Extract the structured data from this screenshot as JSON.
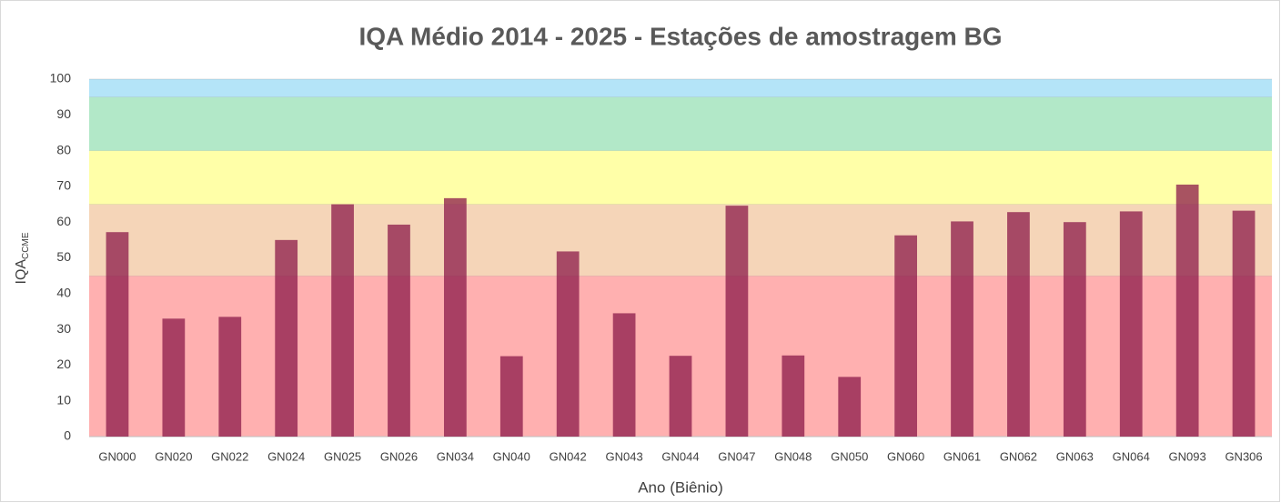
{
  "chart_data": {
    "type": "bar",
    "title": "IQA Médio 2014 - 2025 - Estações de amostragem BG",
    "x_label": "Ano (Biênio)",
    "y_label": "IQA",
    "y_label_sub": "CCME",
    "categories": [
      "GN000",
      "GN020",
      "GN022",
      "GN024",
      "GN025",
      "GN026",
      "GN034",
      "GN040",
      "GN042",
      "GN043",
      "GN044",
      "GN047",
      "GN048",
      "GN050",
      "GN060",
      "GN061",
      "GN062",
      "GN063",
      "GN064",
      "GN093",
      "GN306"
    ],
    "values": [
      57.2,
      33,
      33.5,
      55,
      65,
      59.3,
      66.7,
      22.5,
      51.8,
      34.5,
      22.6,
      64.6,
      22.7,
      16.7,
      56.3,
      60.2,
      62.8,
      60,
      63,
      70.5,
      63.2
    ],
    "color": "#8b1a4a",
    "bands": [
      {
        "from": 0,
        "to": 45,
        "color": "#ffb0b0"
      },
      {
        "from": 45,
        "to": 65,
        "color": "#f5d5b8"
      },
      {
        "from": 65,
        "to": 80,
        "color": "#ffffa8"
      },
      {
        "from": 80,
        "to": 95,
        "color": "#b2e8c8"
      },
      {
        "from": 95,
        "to": 100,
        "color": "#b4e4f8"
      }
    ],
    "ylim": [
      0,
      100
    ],
    "yticks": [
      0,
      10,
      20,
      30,
      40,
      50,
      60,
      70,
      80,
      90,
      100
    ],
    "grid": false
  }
}
